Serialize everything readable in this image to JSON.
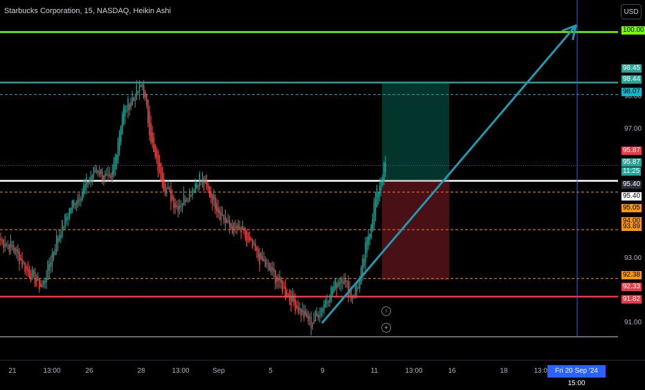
{
  "header": {
    "title": "Starbucks Corporation, 15, NASDAQ, Heikin Ashi",
    "currency": "USD"
  },
  "colors": {
    "up": "#26a69a",
    "down": "#ef5350",
    "green_line": "#76ff03",
    "teal_line": "#26a69a",
    "red_line": "#f23645",
    "white_line": "#ffffff",
    "orange_dash": "#ff9800",
    "arrow": "#1e9bb0",
    "crosshair": "#2962ff"
  },
  "price_tags": [
    {
      "label": "100.00",
      "bg": "#76ff03",
      "fg": "#000000"
    },
    {
      "label": "98.45",
      "bg": "#26a69a",
      "fg": "#ffffff"
    },
    {
      "label": "98.44",
      "bg": "#26a69a",
      "fg": "#ffffff"
    },
    {
      "label": "98.07",
      "bg": "#00bcd4",
      "fg": "#000000"
    },
    {
      "label": "95.87",
      "bg": "#f23645",
      "fg": "#ffffff"
    },
    {
      "label": "95.87",
      "bg": "#26a69a",
      "fg": "#ffffff"
    },
    {
      "label": "11:25",
      "bg": "#26a69a",
      "fg": "#ffffff"
    },
    {
      "label": "95.40",
      "bg": "#2a2e39",
      "fg": "#ffffff"
    },
    {
      "label": "95.40",
      "bg": "#ffffff",
      "fg": "#000000"
    },
    {
      "label": "95.05",
      "bg": "#ff9800",
      "fg": "#000000"
    },
    {
      "label": "94.00",
      "bg": "#ff9800",
      "fg": "#000000"
    },
    {
      "label": "93.89",
      "bg": "#ff9800",
      "fg": "#000000"
    },
    {
      "label": "92.38",
      "bg": "#ff9800",
      "fg": "#000000"
    },
    {
      "label": "92.33",
      "bg": "#f23645",
      "fg": "#ffffff"
    },
    {
      "label": "91.82",
      "bg": "#f23645",
      "fg": "#ffffff"
    }
  ],
  "date_tag": "Fri 20 Sep '24   15:00",
  "chart_data": {
    "type": "candlestick",
    "y_ticks": [
      "98.00",
      "97.00",
      "93.00",
      "91.00"
    ],
    "x_ticks": [
      "21",
      "13:00",
      "26",
      "28",
      "13:00",
      "Sep",
      "5",
      "9",
      "11",
      "13:00",
      "16",
      "18",
      "13:00"
    ],
    "ylim": [
      90.6,
      100.35
    ],
    "levels": [
      {
        "value": 100.0,
        "style": "solid"
      },
      {
        "value": 98.44,
        "style": "solid"
      },
      {
        "value": 98.45,
        "style": "dotted"
      },
      {
        "value": 98.07,
        "style": "dashed"
      },
      {
        "value": 95.87,
        "style": "dotted"
      },
      {
        "value": 95.4,
        "style": "solid"
      },
      {
        "value": 95.05,
        "style": "dashed"
      },
      {
        "value": 93.89,
        "style": "dashed"
      },
      {
        "value": 92.38,
        "style": "dashed"
      },
      {
        "value": 91.82,
        "style": "solid"
      }
    ],
    "position": {
      "entry": 95.4,
      "target": 98.44,
      "stop": 92.33
    },
    "arrow": {
      "from": {
        "x_tick": "9",
        "y": 91.02
      },
      "to": {
        "x_tick": "18",
        "y": 100.2
      }
    },
    "series": {
      "x_start": "21",
      "y_start": 93.6,
      "path": [
        {
          "to": 93.3,
          "steps": 10
        },
        {
          "to": 92.6,
          "steps": 10
        },
        {
          "to": 92.1,
          "steps": 10
        },
        {
          "to": 93.6,
          "steps": 10
        },
        {
          "to": 94.6,
          "steps": 10
        },
        {
          "to": 95.1,
          "steps": 8
        },
        {
          "to": 95.8,
          "steps": 10
        },
        {
          "to": 95.3,
          "steps": 10
        },
        {
          "to": 97.5,
          "steps": 8
        },
        {
          "to": 98.0,
          "steps": 8
        },
        {
          "to": 98.4,
          "steps": 6
        },
        {
          "to": 96.2,
          "steps": 8
        },
        {
          "to": 95.2,
          "steps": 8
        },
        {
          "to": 94.6,
          "steps": 8
        },
        {
          "to": 95.0,
          "steps": 8
        },
        {
          "to": 95.5,
          "steps": 8
        },
        {
          "to": 94.8,
          "steps": 10
        },
        {
          "to": 94.0,
          "steps": 10
        },
        {
          "to": 93.8,
          "steps": 10
        },
        {
          "to": 93.1,
          "steps": 10
        },
        {
          "to": 92.6,
          "steps": 10
        },
        {
          "to": 92.0,
          "steps": 10
        },
        {
          "to": 91.4,
          "steps": 10
        },
        {
          "to": 91.0,
          "steps": 8
        },
        {
          "to": 91.4,
          "steps": 6
        },
        {
          "to": 92.0,
          "steps": 8
        },
        {
          "to": 92.5,
          "steps": 8
        },
        {
          "to": 91.8,
          "steps": 6
        },
        {
          "to": 92.3,
          "steps": 6
        },
        {
          "to": 93.3,
          "steps": 4
        },
        {
          "to": 94.6,
          "steps": 6
        },
        {
          "to": 95.5,
          "steps": 5
        },
        {
          "to": 95.9,
          "steps": 3
        }
      ]
    }
  }
}
